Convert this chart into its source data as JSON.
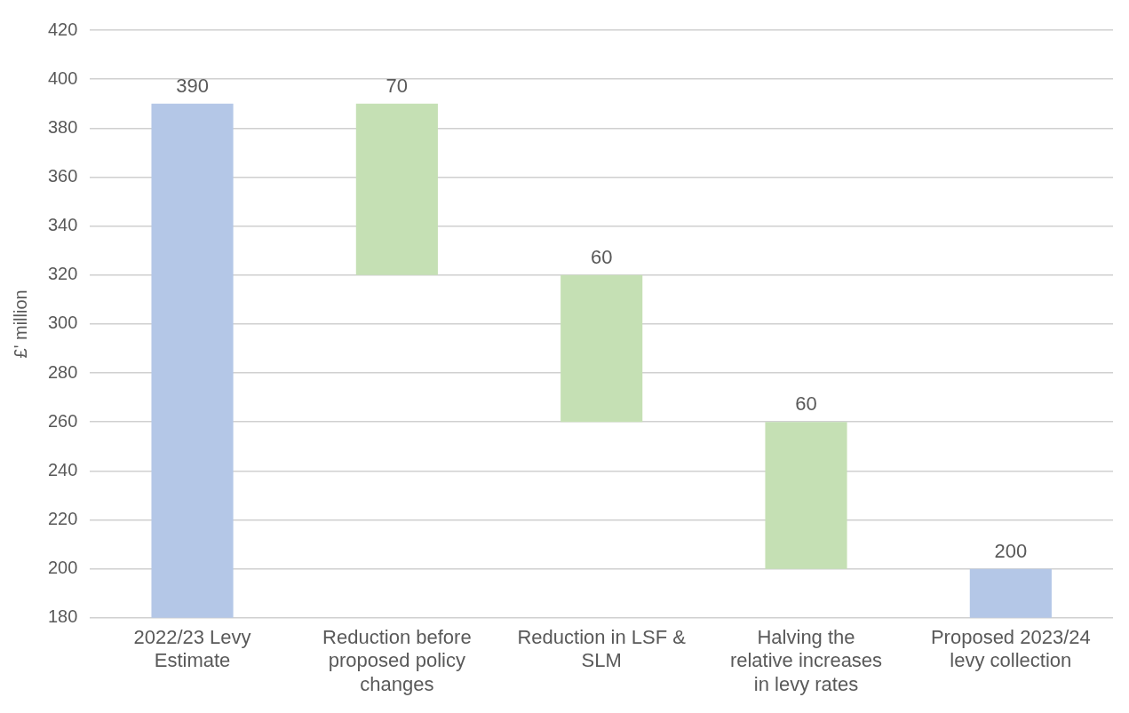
{
  "chart_data": {
    "type": "bar",
    "ylabel": "£' million",
    "categories": [
      "2022/23 Levy Estimate",
      "Reduction before proposed policy changes",
      "Reduction in LSF & SLM",
      "Halving the relative increases in levy rates",
      "Proposed 2023/24 levy collection"
    ],
    "values": [
      390,
      70,
      60,
      60,
      200
    ],
    "base": [
      null,
      320,
      260,
      200,
      null
    ],
    "colors": [
      "#b4c7e7",
      "#c5e0b4",
      "#c5e0b4",
      "#c5e0b4",
      "#b4c7e7"
    ],
    "ylim": [
      180,
      420
    ],
    "yticks": [
      180,
      200,
      220,
      240,
      260,
      280,
      300,
      320,
      340,
      360,
      380,
      400,
      420
    ],
    "grid": "y",
    "legend": false,
    "data_labels": true
  }
}
